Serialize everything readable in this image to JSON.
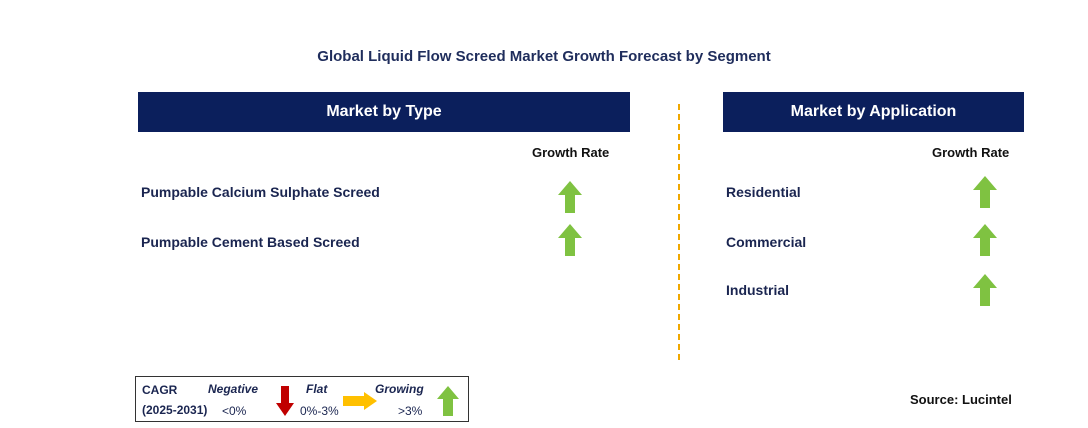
{
  "title": "Global Liquid Flow Screed Market Growth Forecast by Segment",
  "left_panel": {
    "header": "Market by Type",
    "growth_label": "Growth Rate",
    "items": [
      {
        "label": "Pumpable Calcium Sulphate Screed",
        "trend": "growing"
      },
      {
        "label": "Pumpable Cement Based Screed",
        "trend": "growing"
      }
    ]
  },
  "right_panel": {
    "header": "Market by Application",
    "growth_label": "Growth Rate",
    "items": [
      {
        "label": "Residential",
        "trend": "growing"
      },
      {
        "label": "Commercial",
        "trend": "growing"
      },
      {
        "label": "Industrial",
        "trend": "growing"
      }
    ]
  },
  "legend": {
    "cagr_label": "CAGR",
    "period": "(2025-2031)",
    "negative": {
      "label": "Negative",
      "range": "<0%",
      "color": "#c00000",
      "icon": "arrow-down-icon"
    },
    "flat": {
      "label": "Flat",
      "range": "0%-3%",
      "color": "#ffc000",
      "icon": "arrow-right-icon"
    },
    "growing": {
      "label": "Growing",
      "range": ">3%",
      "color": "#7fc241",
      "icon": "arrow-up-icon"
    }
  },
  "source": "Source: Lucintel",
  "colors": {
    "header_bg": "#0b1f5c",
    "divider": "#f0a800",
    "up_arrow": "#7fc241"
  }
}
